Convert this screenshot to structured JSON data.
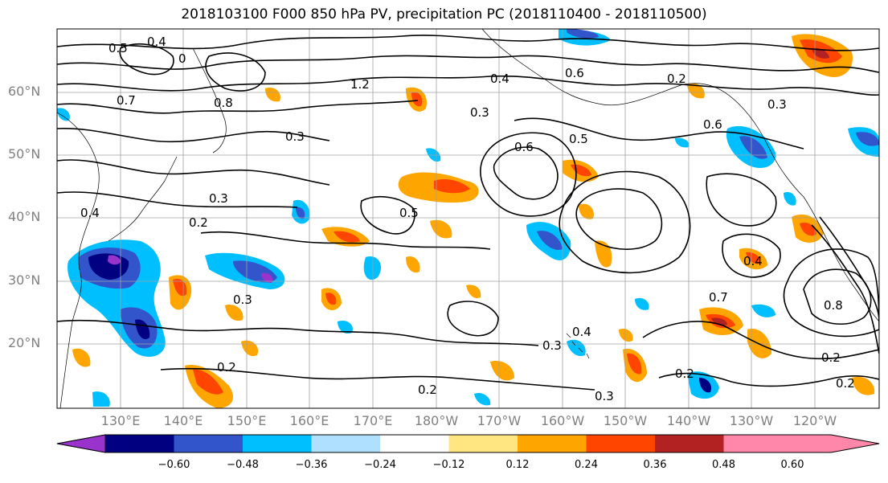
{
  "title": "2018103100 F000 850 hPa PV, precipitation PC (2018110400 - 2018110500)",
  "map": {
    "lat_labels": [
      "60°N",
      "50°N",
      "40°N",
      "30°N",
      "20°N"
    ],
    "lon_labels": [
      "130°E",
      "140°E",
      "150°E",
      "160°E",
      "170°E",
      "180°W",
      "170°W",
      "160°W",
      "150°W",
      "140°W",
      "130°W",
      "120°W"
    ],
    "contour_labels": [
      "0.5",
      "0.4",
      "0",
      "1.2",
      "0.7",
      "0.8",
      "0.4",
      "0.6",
      "0.3",
      "0.2",
      "0.6",
      "0.5",
      "0.2",
      "0.3",
      "0.4",
      "0.3",
      "0.3",
      "0.5",
      "0.6",
      "0.2",
      "0.7",
      "0.3",
      "0.2",
      "0.2",
      "0.3",
      "0.4",
      "0.2",
      "0.2",
      "0.8",
      "0.4",
      "0.3"
    ]
  },
  "colorbar": {
    "colors": [
      "#9933cc",
      "#000080",
      "#3355cc",
      "#00bfff",
      "#b0e0ff",
      "#ffffff",
      "#ffe680",
      "#ffa500",
      "#ff4500",
      "#b22222",
      "#ff88aa"
    ],
    "ticks": [
      "−0.60",
      "−0.48",
      "−0.36",
      "−0.24",
      "−0.12",
      "0.12",
      "0.24",
      "0.36",
      "0.48",
      "0.60"
    ]
  }
}
